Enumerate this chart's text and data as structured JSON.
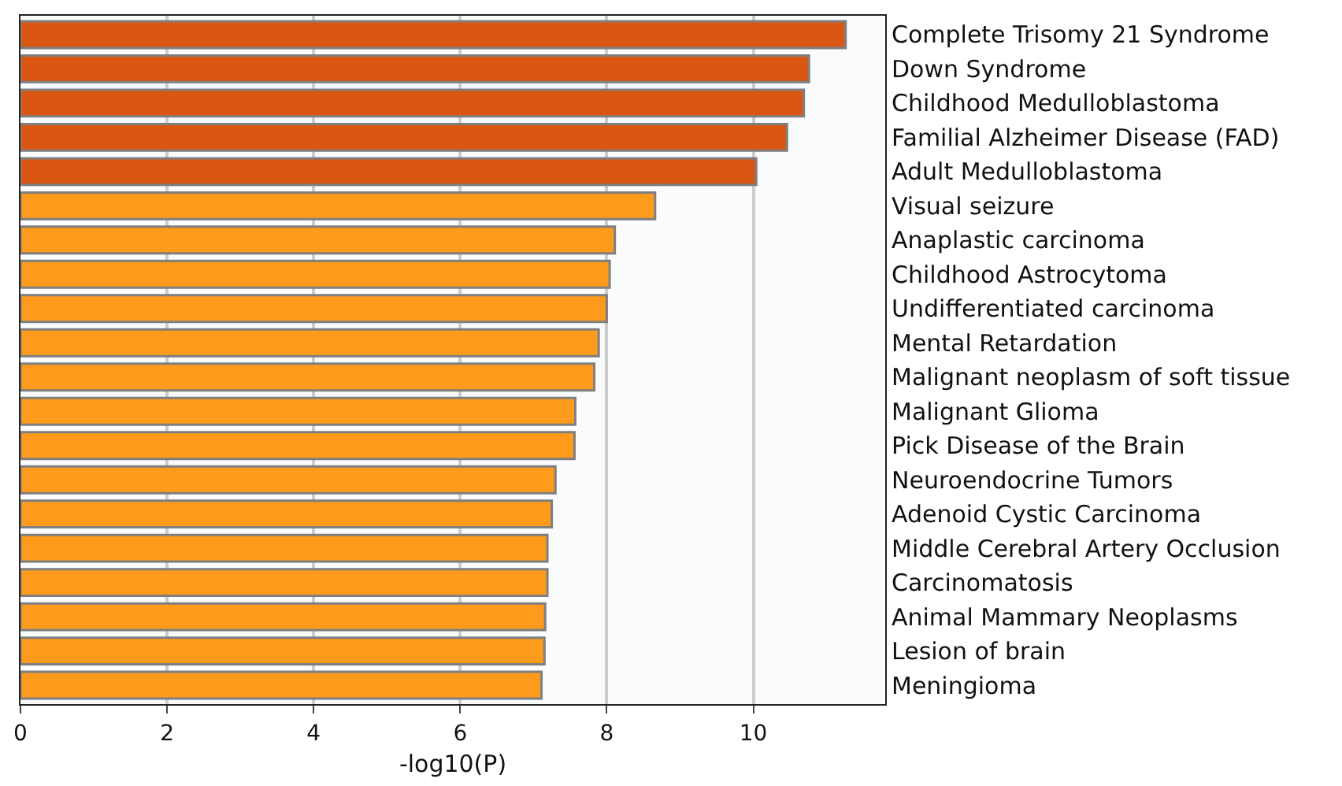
{
  "chart_data": {
    "type": "bar",
    "orientation": "horizontal",
    "xlabel": "-log10(P)",
    "categories": [
      "Complete Trisomy 21 Syndrome",
      "Down Syndrome",
      "Childhood Medulloblastoma",
      "Familial Alzheimer Disease (FAD)",
      "Adult Medulloblastoma",
      "Visual seizure",
      "Anaplastic carcinoma",
      "Childhood Astrocytoma",
      "Undifferentiated carcinoma",
      "Mental Retardation",
      "Malignant neoplasm of soft tissue",
      "Malignant Glioma",
      "Pick Disease of the Brain",
      "Neuroendocrine Tumors",
      "Adenoid Cystic Carcinoma",
      "Middle Cerebral Artery Occlusion",
      "Carcinomatosis",
      "Animal Mammary Neoplasms",
      "Lesion of brain",
      "Meningioma"
    ],
    "values": [
      11.26,
      10.76,
      10.69,
      10.46,
      10.04,
      8.66,
      8.11,
      8.04,
      8.0,
      7.89,
      7.83,
      7.57,
      7.56,
      7.3,
      7.25,
      7.19,
      7.19,
      7.16,
      7.15,
      7.11
    ],
    "colors": [
      "#d95713",
      "#d95713",
      "#d95713",
      "#d95713",
      "#d95713",
      "#fe9a1c",
      "#fe9a1c",
      "#fe9a1c",
      "#fe9a1c",
      "#fe9a1c",
      "#fe9a1c",
      "#fe9a1c",
      "#fe9a1c",
      "#fe9a1c",
      "#fe9a1c",
      "#fe9a1c",
      "#fe9a1c",
      "#fe9a1c",
      "#fe9a1c",
      "#fe9a1c"
    ],
    "xlim": [
      0,
      11.8
    ],
    "xticks": [
      0,
      2,
      4,
      6,
      8,
      10
    ],
    "grid": "x"
  }
}
